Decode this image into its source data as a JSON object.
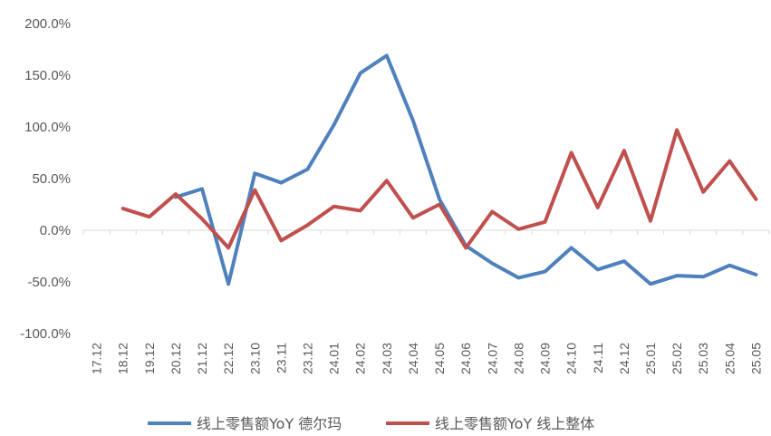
{
  "chart_data": {
    "type": "line",
    "categories": [
      "17.12",
      "18.12",
      "19.12",
      "20.12",
      "21.12",
      "22.12",
      "23.10",
      "23.11",
      "23.12",
      "24.01",
      "24.02",
      "24.03",
      "24.04",
      "24.05",
      "24.06",
      "24.07",
      "24.08",
      "24.09",
      "24.10",
      "24.11",
      "24.12",
      "25.01",
      "25.02",
      "25.03",
      "25.04",
      "25.05"
    ],
    "ylim": [
      -100,
      200
    ],
    "yticks": [
      "-100.0%",
      "-50.0%",
      "0.0%",
      "50.0%",
      "100.0%",
      "150.0%",
      "200.0%"
    ],
    "ytick_values": [
      -100,
      -50,
      0,
      50,
      100,
      150,
      200
    ],
    "grid": false,
    "legend_position": "bottom",
    "series": [
      {
        "name": "线上零售额YoY 德尔玛",
        "color": "#4F81BD",
        "values": [
          null,
          null,
          null,
          32,
          40,
          -52,
          55,
          46,
          59,
          102,
          152,
          169,
          106,
          30,
          -15,
          -32,
          -46,
          -40,
          -17,
          -38,
          -30,
          -52,
          -44,
          -45,
          -34,
          -43
        ]
      },
      {
        "name": "线上零售额YoY 线上整体",
        "color": "#C0504D",
        "values": [
          null,
          21,
          13,
          35,
          11,
          -17,
          39,
          -10,
          5,
          23,
          19,
          48,
          12,
          25,
          -17,
          18,
          1,
          8,
          75,
          22,
          77,
          9,
          97,
          37,
          67,
          30
        ]
      }
    ]
  }
}
